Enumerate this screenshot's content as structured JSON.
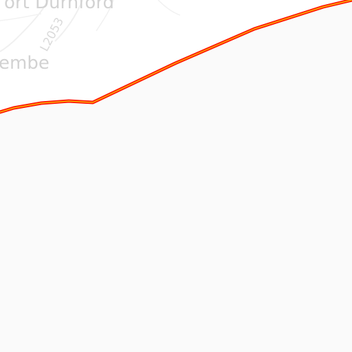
{
  "map": {
    "labels": {
      "place_top": "ort Durnford",
      "place_left": "embe",
      "road_ref": "L2053"
    },
    "colors": {
      "land": "#fafafa",
      "built_up": "#ffffff",
      "road_casing": "#ff1a00",
      "road_fill": "#f5d000",
      "minor_road": "#eeeeee",
      "label_text": "#d2d2d2"
    }
  }
}
